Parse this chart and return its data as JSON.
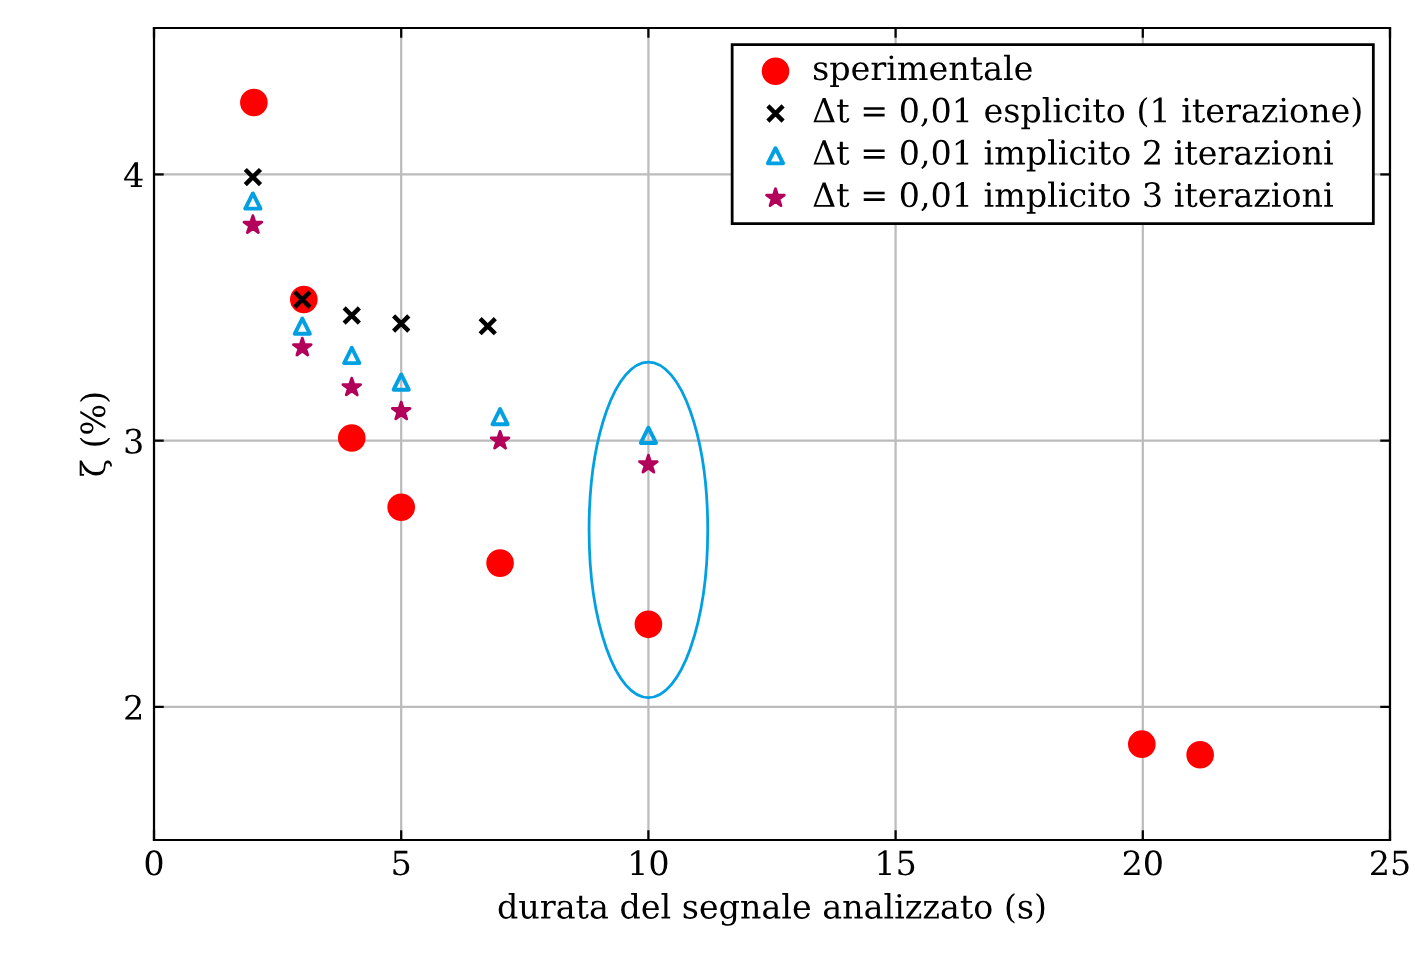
{
  "chart_data": {
    "type": "scatter",
    "xlabel": "durata del segnale analizzato (s)",
    "ylabel": "ζ (%)",
    "xlim": [
      0,
      25
    ],
    "xticks": [
      0,
      5,
      10,
      15,
      20,
      25
    ],
    "ylim": [
      1.5,
      4.55
    ],
    "yticks": [
      2,
      3,
      4
    ],
    "grid": true,
    "legend": "top right",
    "series": [
      {
        "name": "sperimentale",
        "color": "#ff0000",
        "marker": "circle",
        "x": [
          2.02,
          3.03,
          4.0,
          5.0,
          7.0,
          10.0,
          19.98,
          21.16
        ],
        "values": [
          4.27,
          3.53,
          3.01,
          2.75,
          2.54,
          2.31,
          1.86,
          1.82
        ]
      },
      {
        "name": "Δt = 0,01 esplicito (1 iterazione)",
        "color": "#000000",
        "marker": "cross",
        "x": [
          2.0,
          3.0,
          4.0,
          5.0,
          6.75
        ],
        "values": [
          3.99,
          3.53,
          3.47,
          3.44,
          3.43
        ]
      },
      {
        "name": "Δt = 0,01 implicito 2 iterazioni",
        "color": "#00a0e3",
        "marker": "triangle",
        "x": [
          2.0,
          3.0,
          4.0,
          5.0,
          7.0,
          10.0
        ],
        "values": [
          3.9,
          3.43,
          3.32,
          3.22,
          3.09,
          3.02
        ]
      },
      {
        "name": "Δt = 0,01 implicito 3 iterazioni",
        "color": "#b3005a",
        "marker": "star",
        "x": [
          2.0,
          3.0,
          4.0,
          5.0,
          7.0,
          10.0
        ],
        "values": [
          3.81,
          3.35,
          3.2,
          3.11,
          3.0,
          2.91
        ]
      }
    ]
  }
}
